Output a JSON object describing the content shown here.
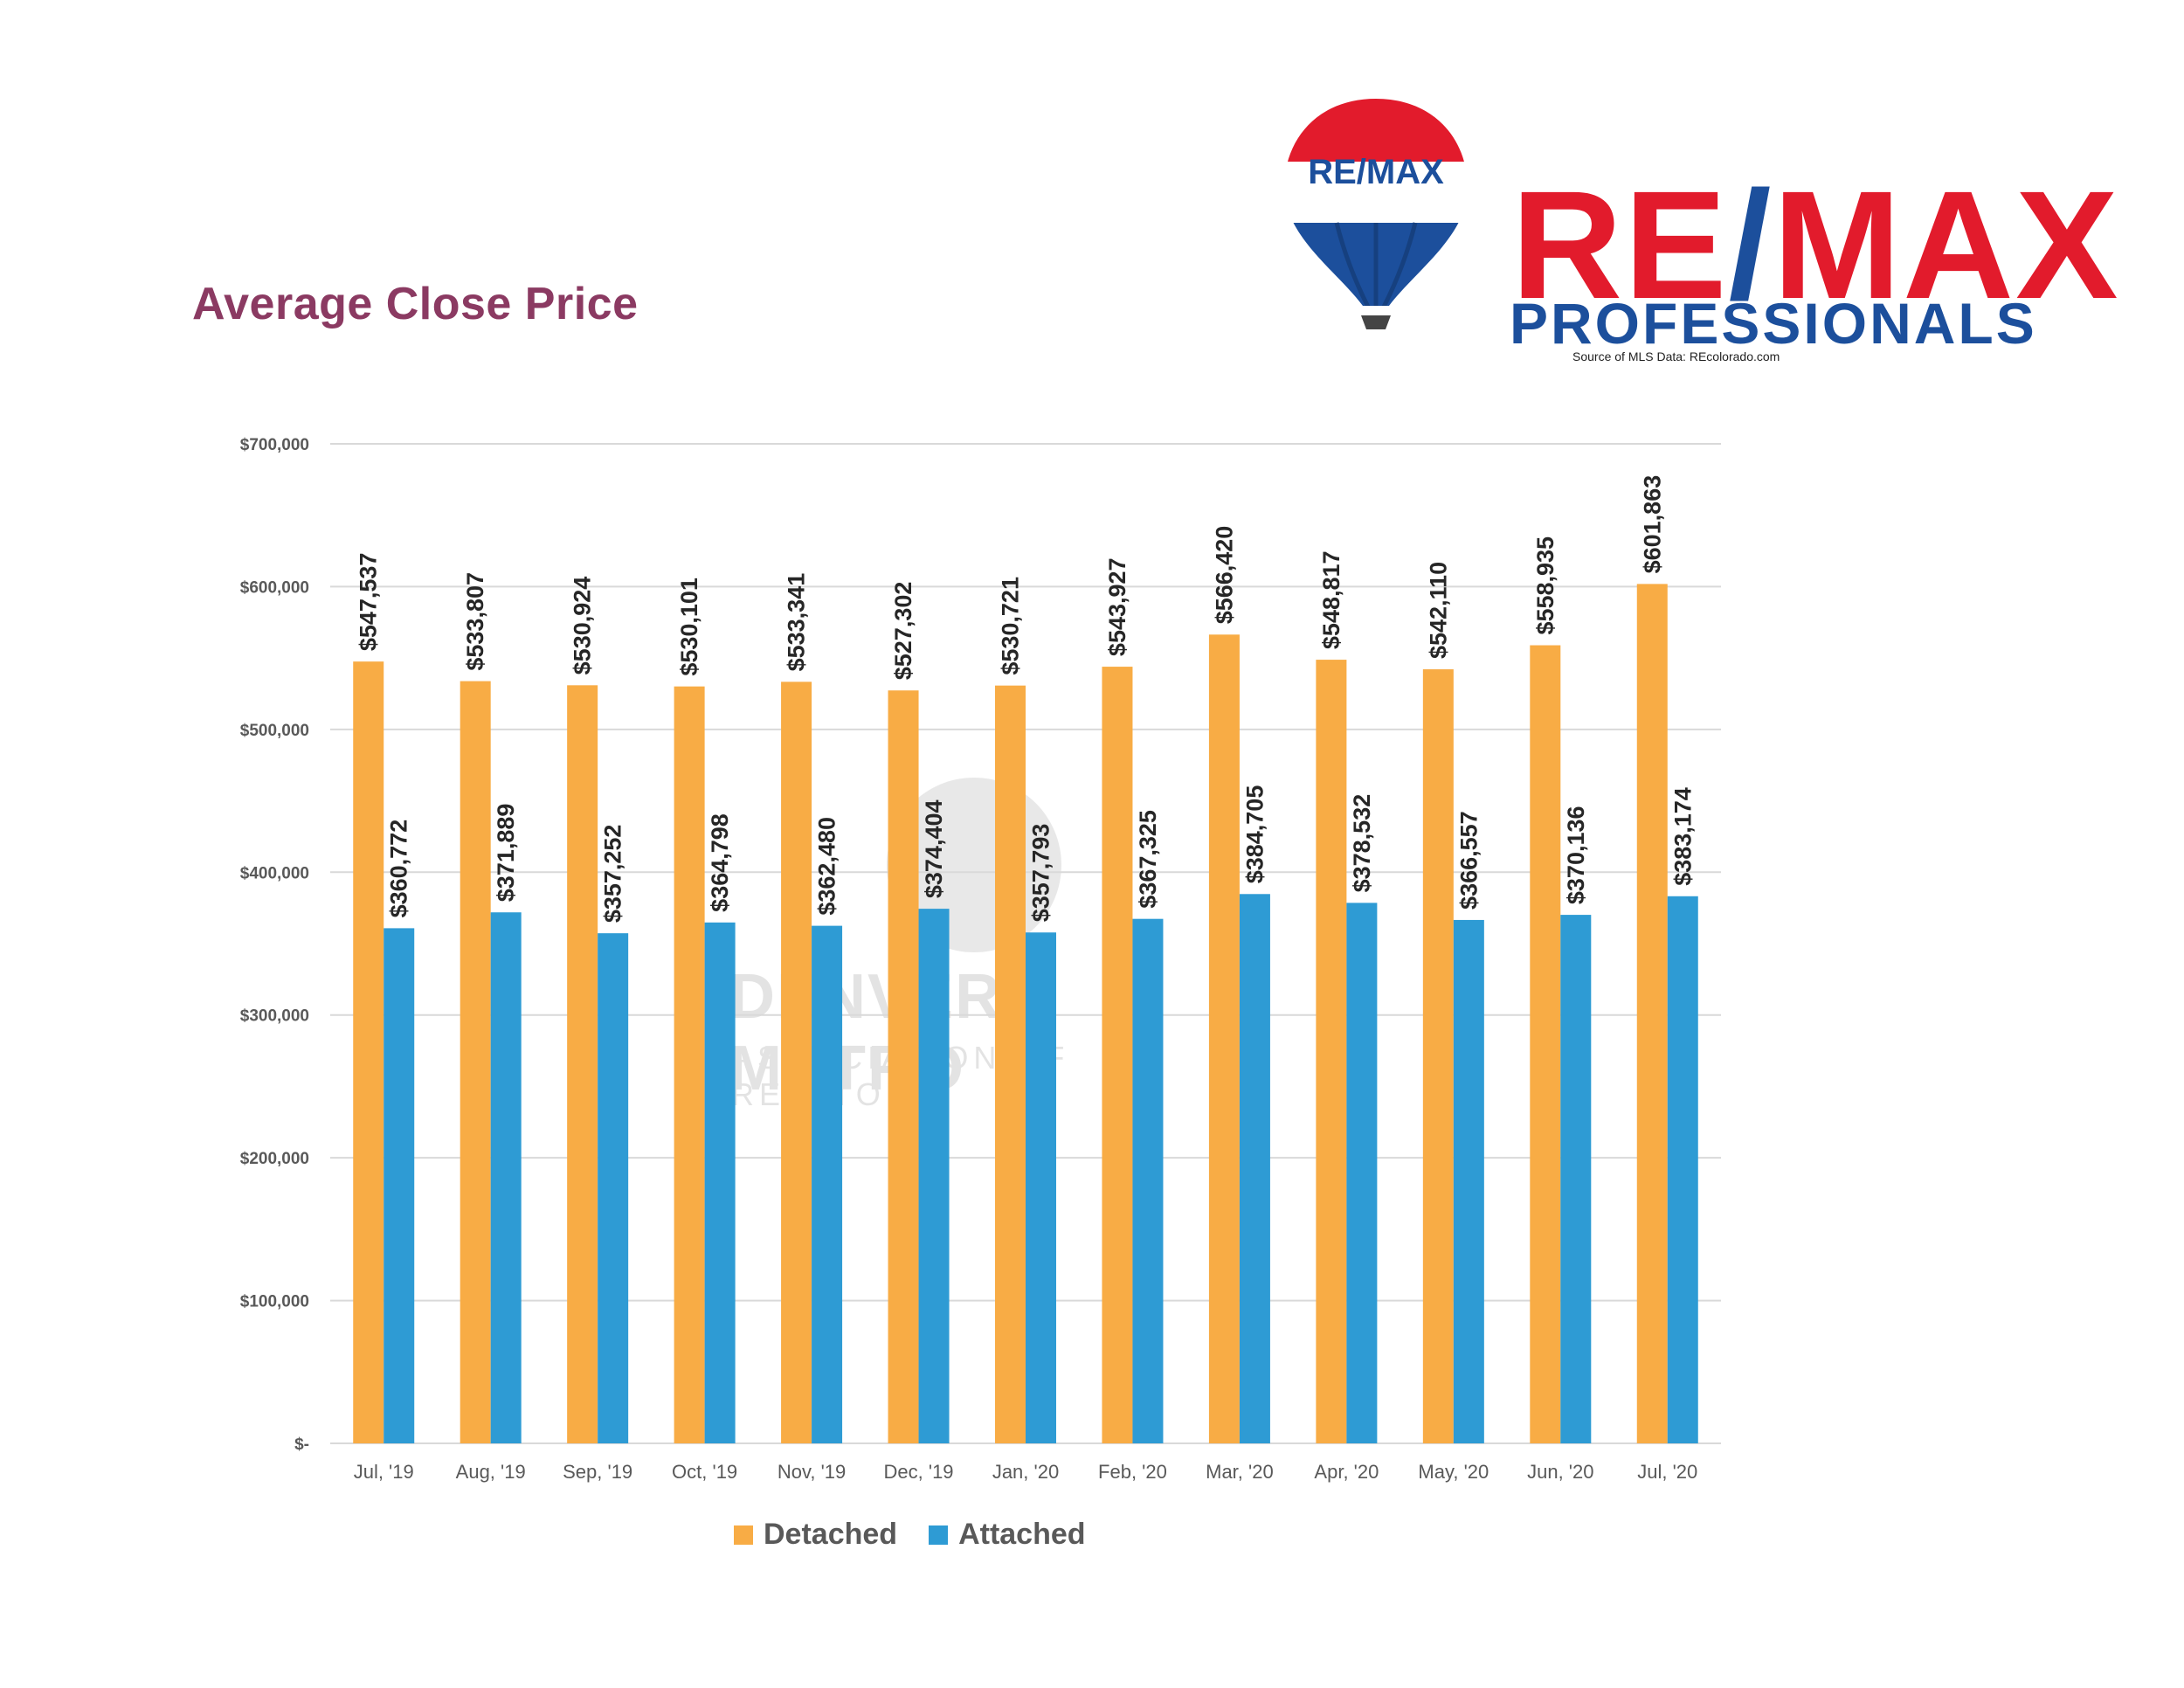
{
  "header": {
    "title": "Average Close Price",
    "brand_wordmark_left": "RE",
    "brand_wordmark_slash": "/",
    "brand_wordmark_right": "MAX",
    "brand_subtitle": "PROFESSIONALS",
    "balloon_text": "RE/MAX",
    "source_note": "Source of MLS Data: REcolorado.com"
  },
  "watermark": {
    "line1": "DENVER METRO",
    "line2": "ASSOCIATION OF REALTORS"
  },
  "colors": {
    "detached": "#f8ac45",
    "attached": "#2e9bd4",
    "title": "#8b3a62",
    "brand_red": "#e21b2c",
    "brand_blue": "#1c4f9c"
  },
  "chart_data": {
    "type": "bar",
    "title": "Average Close Price",
    "categories": [
      "Jul, '19",
      "Aug, '19",
      "Sep, '19",
      "Oct, '19",
      "Nov, '19",
      "Dec, '19",
      "Jan, '20",
      "Feb, '20",
      "Mar, '20",
      "Apr, '20",
      "May, '20",
      "Jun, '20",
      "Jul, '20"
    ],
    "series": [
      {
        "name": "Detached",
        "values": [
          547537,
          533807,
          530924,
          530101,
          533341,
          527302,
          530721,
          543927,
          566420,
          548817,
          542110,
          558935,
          601863
        ],
        "labels": [
          "$547,537",
          "$533,807",
          "$530,924",
          "$530,101",
          "$533,341",
          "$527,302",
          "$530,721",
          "$543,927",
          "$566,420",
          "$548,817",
          "$542,110",
          "$558,935",
          "$601,863"
        ]
      },
      {
        "name": "Attached",
        "values": [
          360772,
          371889,
          357252,
          364798,
          362480,
          374404,
          357793,
          367325,
          384705,
          378532,
          366557,
          370136,
          383174
        ],
        "labels": [
          "$360,772",
          "$371,889",
          "$357,252",
          "$364,798",
          "$362,480",
          "$374,404",
          "$357,793",
          "$367,325",
          "$384,705",
          "$378,532",
          "$366,557",
          "$370,136",
          "$383,174"
        ]
      }
    ],
    "ylim": [
      0,
      700000
    ],
    "yticks": [
      0,
      100000,
      200000,
      300000,
      400000,
      500000,
      600000,
      700000
    ],
    "ytick_labels": [
      "$-",
      "$100,000",
      "$200,000",
      "$300,000",
      "$400,000",
      "$500,000",
      "$600,000",
      "$700,000"
    ],
    "grid": true,
    "legend_position": "bottom"
  }
}
